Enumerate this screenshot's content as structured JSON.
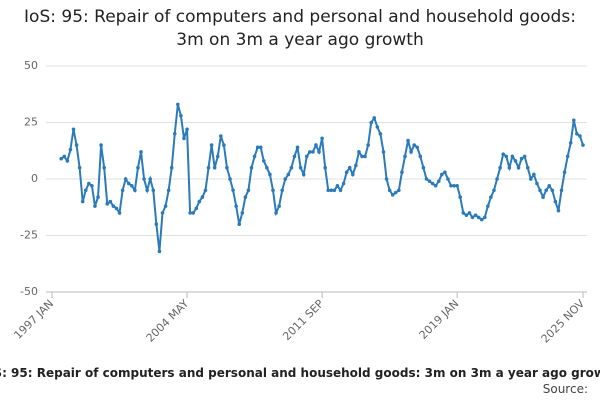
{
  "chart_data": {
    "type": "line",
    "title": "IoS: 95: Repair of computers and personal and household goods: 3m on 3m a year ago growth",
    "source_label": "Source:",
    "categories": [
      "1997 JAN",
      null,
      null,
      null,
      null,
      null,
      null,
      null,
      null,
      null,
      null,
      null,
      null,
      null,
      null,
      null,
      null,
      null,
      null,
      null,
      null,
      null,
      null,
      null,
      null,
      null,
      null,
      null,
      null,
      null,
      null,
      null,
      null,
      null,
      null,
      null,
      null,
      null,
      null,
      null,
      null,
      null,
      null,
      null,
      "2004 MAY",
      null,
      null,
      null,
      null,
      null,
      null,
      null,
      null,
      null,
      null,
      null,
      null,
      null,
      null,
      null,
      null,
      null,
      null,
      null,
      null,
      null,
      null,
      null,
      null,
      null,
      null,
      null,
      null,
      null,
      null,
      null,
      null,
      null,
      null,
      null,
      null,
      null,
      null,
      null,
      null,
      null,
      null,
      null,
      "2011 SEP",
      null,
      null,
      null,
      null,
      null,
      null,
      null,
      null,
      null,
      null,
      null,
      null,
      null,
      null,
      null,
      null,
      null,
      null,
      null,
      null,
      null,
      null,
      null,
      null,
      null,
      null,
      null,
      null,
      null,
      null,
      null,
      null,
      null,
      null,
      null,
      null,
      null,
      null,
      null,
      null,
      null,
      null,
      null,
      "2019 JAN",
      null,
      null,
      null,
      null,
      null,
      null,
      null,
      null,
      null,
      null,
      null,
      null,
      null,
      null,
      null,
      null,
      null,
      null,
      null,
      null,
      null,
      null,
      null,
      null,
      null,
      null,
      null,
      null,
      null,
      null,
      null,
      null,
      null,
      null,
      null,
      null,
      null,
      null,
      null,
      null,
      "2025 NOV"
    ],
    "series": [
      {
        "name": "IoS: 95",
        "color": "#2b7bba",
        "values": [
          null,
          null,
          null,
          9,
          10,
          8,
          13,
          22,
          15,
          5,
          -10,
          -5,
          -2,
          -3,
          -12,
          -8,
          15,
          5,
          -11,
          -10,
          -12,
          -13,
          -15,
          -5,
          0,
          -2,
          -3,
          -5,
          5,
          12,
          0,
          -5,
          0,
          -5,
          -20,
          -32,
          -15,
          -12,
          -5,
          5,
          20,
          33,
          28,
          18,
          22,
          -15,
          -15,
          -13,
          -10,
          -8,
          -5,
          5,
          15,
          5,
          10,
          19,
          15,
          5,
          0,
          -5,
          -12,
          -20,
          -15,
          -8,
          -5,
          5,
          10,
          14,
          14,
          8,
          5,
          2,
          -5,
          -15,
          -12,
          -5,
          0,
          2,
          5,
          10,
          14,
          5,
          2,
          10,
          12,
          12,
          15,
          12,
          18,
          5,
          -5,
          -5,
          -5,
          -3,
          -5,
          -2,
          3,
          5,
          2,
          6,
          12,
          10,
          10,
          15,
          25,
          27,
          23,
          20,
          12,
          0,
          -5,
          -7,
          -6,
          -5,
          3,
          10,
          17,
          12,
          15,
          14,
          10,
          5,
          0,
          -1,
          -2,
          -3,
          -1,
          2,
          3,
          0,
          -3,
          -3,
          -3,
          -8,
          -15,
          -16,
          -15,
          -17,
          -16,
          -17,
          -18,
          -17,
          -12,
          -8,
          -5,
          0,
          5,
          11,
          10,
          5,
          10,
          8,
          5,
          9,
          10,
          5,
          0,
          2,
          -2,
          -5,
          -8,
          -5,
          -3,
          -5,
          -10,
          -14,
          -5,
          3,
          10,
          16,
          26,
          20,
          19,
          15
        ]
      }
    ],
    "ylim": [
      -50,
      50
    ],
    "yticks": [
      -50,
      -25,
      0,
      25,
      50
    ],
    "grid": true
  }
}
